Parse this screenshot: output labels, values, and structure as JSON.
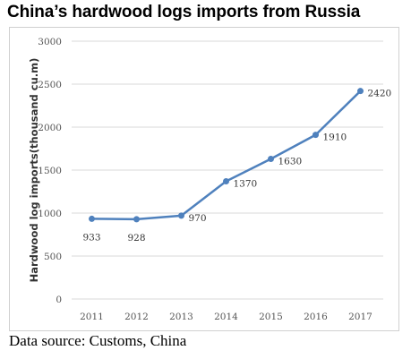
{
  "header": {
    "title": "China’s hardwood logs imports from Russia"
  },
  "footer": {
    "source": "Data source: Customs, China"
  },
  "chart_data": {
    "type": "line",
    "title": "China’s hardwood logs imports from Russia",
    "xlabel": "",
    "ylabel": "Hardwood log imports(thousand cu.m)",
    "categories": [
      "2011",
      "2012",
      "2013",
      "2014",
      "2015",
      "2016",
      "2017"
    ],
    "series": [
      {
        "values": [
          933,
          928,
          970,
          1370,
          1630,
          1910,
          2420
        ]
      }
    ],
    "ylim": [
      0,
      3000
    ],
    "yticks": [
      0,
      500,
      1000,
      1500,
      2000,
      2500,
      3000
    ],
    "grid": true,
    "legend": "none",
    "colors": {
      "line": "#4f81bd",
      "grid": "#d9d9d9"
    }
  }
}
